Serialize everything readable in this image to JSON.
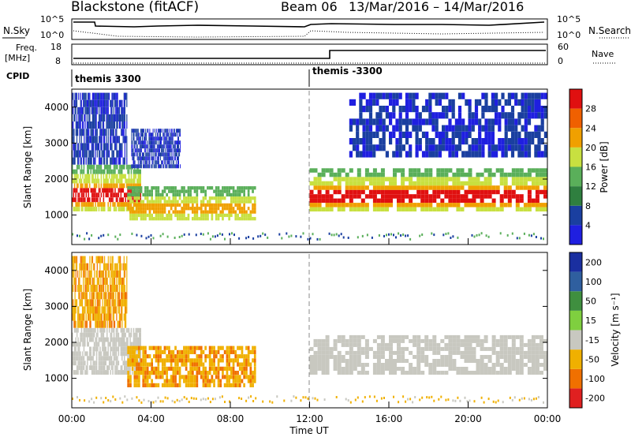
{
  "title": {
    "station": "Blackstone (fitACF)",
    "beam": "Beam 06",
    "dates": "13/Mar/2016 – 14/Mar/2016"
  },
  "top_panel": {
    "left_label": "N.Sky",
    "left_ticks": [
      "10^5",
      "10^0"
    ],
    "right_label": "N.Search",
    "right_ticks": [
      "10^5",
      "10^0"
    ]
  },
  "freq_panel": {
    "left_label_1": "Freq.",
    "left_label_2": "[MHz]",
    "left_ticks": [
      "18",
      "8"
    ],
    "right_label": "Nave",
    "right_ticks": [
      "60",
      "0"
    ]
  },
  "cpid": {
    "label": "CPID",
    "first": "themis 3300",
    "second": "themis -3300"
  },
  "power_panel": {
    "ylabel": "Slant Range [km]",
    "yticks": [
      "1000",
      "2000",
      "3000",
      "4000"
    ],
    "colorbar_label": "Power [dB]",
    "colorbar_ticks": [
      "4",
      "8",
      "12",
      "16",
      "20",
      "24",
      "28"
    ],
    "colors": [
      "#1f1fe0",
      "#1a3fa0",
      "#2f7f3f",
      "#5aaf5a",
      "#c8e040",
      "#f0a000",
      "#f06000",
      "#e01010"
    ]
  },
  "velocity_panel": {
    "ylabel": "Slant Range [km]",
    "yticks": [
      "1000",
      "2000",
      "3000",
      "4000"
    ],
    "colorbar_label": "Velocity [m s⁻¹]",
    "colorbar_ticks": [
      "200",
      "100",
      "50",
      "15",
      "-15",
      "-50",
      "-100",
      "-200"
    ],
    "colors": [
      "#1a2fa0",
      "#2f5f9f",
      "#3f8f3f",
      "#7fcf3f",
      "#c8c8c0",
      "#f0b000",
      "#f07000",
      "#e02020"
    ]
  },
  "x_axis": {
    "ticks": [
      "00:00",
      "04:00",
      "08:00",
      "12:00",
      "16:00",
      "20:00",
      "00:00"
    ],
    "label": "Time UT"
  },
  "chart_data": [
    {
      "type": "heatmap",
      "title": "",
      "xlabel": "Time UT",
      "ylabel": "Slant Range [km]",
      "x_range_hours": [
        0,
        24
      ],
      "ylim": [
        180,
        4500
      ],
      "colorbar": "Power [dB]",
      "bands": [
        {
          "t_start": 0.0,
          "t_end": 3.5,
          "range_start": 1100,
          "range_end": 2400,
          "intensity": "high"
        },
        {
          "t_start": 0.0,
          "t_end": 2.8,
          "range_start": 2400,
          "range_end": 4400,
          "intensity": "low"
        },
        {
          "t_start": 2.8,
          "t_end": 9.3,
          "range_start": 850,
          "range_end": 1800,
          "intensity": "medium"
        },
        {
          "t_start": 3.0,
          "t_end": 5.5,
          "range_start": 2300,
          "range_end": 3400,
          "intensity": "low"
        },
        {
          "t_start": 12.0,
          "t_end": 24.0,
          "range_start": 1100,
          "range_end": 2300,
          "intensity": "high"
        },
        {
          "t_start": 14.0,
          "t_end": 24.0,
          "range_start": 2600,
          "range_end": 4400,
          "intensity": "low"
        }
      ]
    },
    {
      "type": "heatmap",
      "title": "",
      "xlabel": "Time UT",
      "ylabel": "Slant Range [km]",
      "x_range_hours": [
        0,
        24
      ],
      "ylim": [
        180,
        4500
      ],
      "colorbar": "Velocity [m s⁻¹]",
      "bands": [
        {
          "t_start": 0.0,
          "t_end": 3.5,
          "range_start": 1100,
          "range_end": 2400,
          "velocity": "-15 to 15"
        },
        {
          "t_start": 0.0,
          "t_end": 2.8,
          "range_start": 2400,
          "range_end": 4400,
          "velocity": "-50 to -15"
        },
        {
          "t_start": 2.8,
          "t_end": 9.3,
          "range_start": 750,
          "range_end": 1900,
          "velocity": "-50 to -15"
        },
        {
          "t_start": 12.0,
          "t_end": 24.0,
          "range_start": 1100,
          "range_end": 2200,
          "velocity": "-15 to 15"
        }
      ]
    }
  ]
}
